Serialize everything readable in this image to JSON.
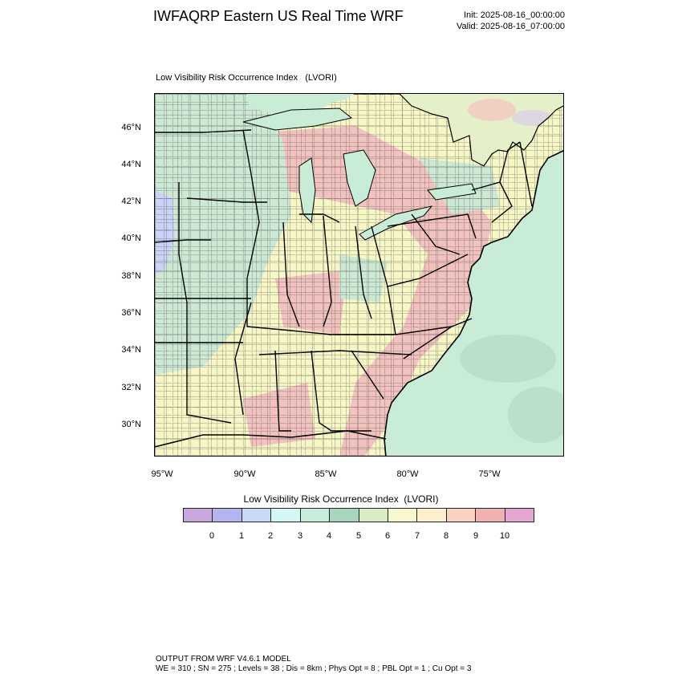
{
  "header": {
    "title": "IWFAQRP Eastern US Real Time WRF",
    "init": "Init: 2025-08-16_00:00:00",
    "valid": "Valid: 2025-08-16_07:00:00"
  },
  "plot": {
    "field_label": "Low Visibility Risk Occurrence Index   (LVORI)",
    "lat_labels": [
      "46°N",
      "44°N",
      "42°N",
      "40°N",
      "38°N",
      "36°N",
      "34°N",
      "32°N",
      "30°N"
    ],
    "lon_labels": [
      "95°W",
      "90°W",
      "85°W",
      "80°W",
      "75°W"
    ],
    "colors": {
      "ocean": "#c8ecd6",
      "land_moderate": "#f7f7c6",
      "land_high": "#f2c2bf",
      "land_mid": "#cde9d4",
      "land_low_blue": "#c9d3f5",
      "state_border": "#000000",
      "county_border": "#333333"
    }
  },
  "colorbar": {
    "title": "Low Visibility Risk Occurrence Index  (LVORI)",
    "colors": [
      "#c9a9dd",
      "#b4b4ee",
      "#c9d8f7",
      "#d4f7f4",
      "#c8ecdb",
      "#a6d6bf",
      "#d8ecc5",
      "#f8f8cf",
      "#fef0cc",
      "#fbd1c2",
      "#f1b1b0",
      "#e2a8cf"
    ],
    "labels": [
      "0",
      "1",
      "2",
      "3",
      "4",
      "5",
      "6",
      "7",
      "8",
      "9",
      "10"
    ]
  },
  "footer": {
    "line1": "OUTPUT FROM WRF V4.6.1 MODEL",
    "line2": "WE = 310 ; SN = 275 ; Levels = 38 ; Dis = 8km ; Phys Opt = 8 ; PBL Opt = 1 ; Cu Opt = 3"
  }
}
